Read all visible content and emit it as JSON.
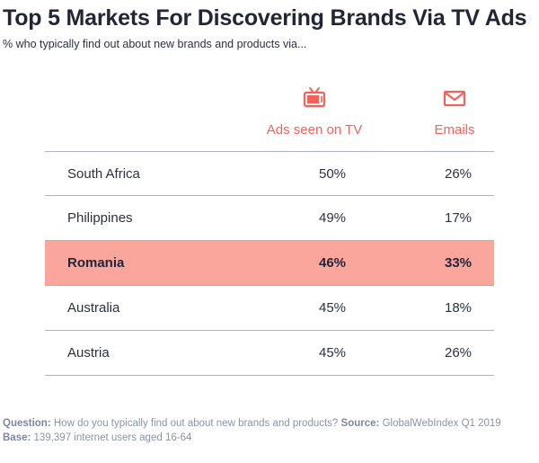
{
  "header": {
    "title": "Top 5 Markets For Discovering Brands Via TV Ads",
    "subtitle": "% who typically find out about new brands and products via..."
  },
  "columns": [
    {
      "label": "Ads seen on TV",
      "icon": "tv-icon"
    },
    {
      "label": "Emails",
      "icon": "envelope-icon"
    }
  ],
  "colors": {
    "accent": "#f4615a",
    "highlight": "#fba69d",
    "rule": "#a9b4c8"
  },
  "chart_data": {
    "type": "table",
    "columns": [
      "Ads seen on TV",
      "Emails"
    ],
    "rows": [
      {
        "country": "South Africa",
        "tv": "50%",
        "email": "26%",
        "highlight": false
      },
      {
        "country": "Philippines",
        "tv": "49%",
        "email": "17%",
        "highlight": false
      },
      {
        "country": "Romania",
        "tv": "46%",
        "email": "33%",
        "highlight": true
      },
      {
        "country": "Australia",
        "tv": "45%",
        "email": "18%",
        "highlight": false
      },
      {
        "country": "Austria",
        "tv": "45%",
        "email": "26%",
        "highlight": false
      }
    ]
  },
  "footer": {
    "question_label": "Question:",
    "question_text": "How do you typically find out about new brands and products?",
    "source_label": "Source:",
    "source_text": "GlobalWebIndex Q1 2019",
    "base_label": "Base:",
    "base_text": "139,397 internet users aged 16-64"
  }
}
